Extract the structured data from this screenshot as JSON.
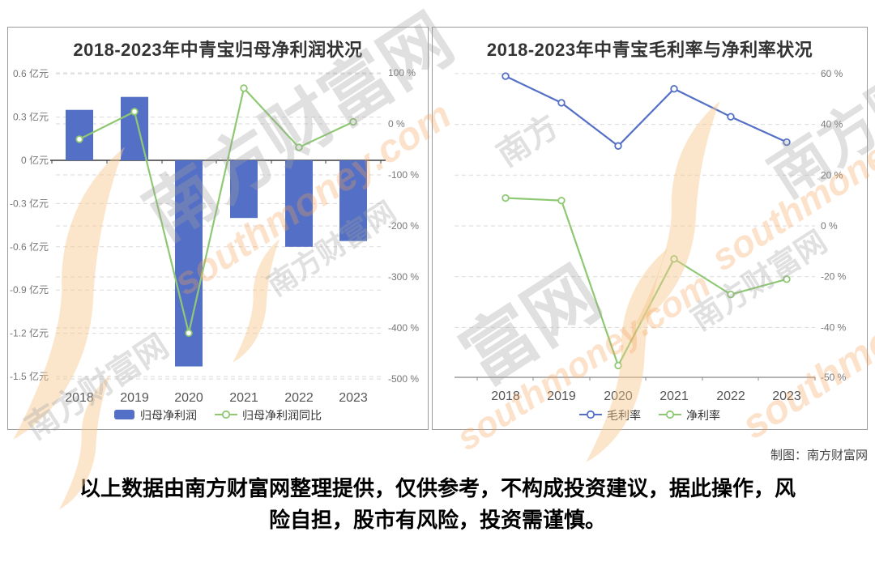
{
  "page": {
    "credit": "制图：南方财富网",
    "disclaimer_lines": [
      "以上数据由南方财富网整理提供，仅供参考，不构成投资建议，据此操作，风",
      "险自担，股市有风险，投资需谨慎。"
    ]
  },
  "watermark": {
    "site_name": "南方财富网",
    "site_url": "southmoney.com",
    "swoosh_color": "#f6c78e",
    "gray_color": "#a0a0a0",
    "orange_color": "#f4a052"
  },
  "chart_data": [
    {
      "type": "bar",
      "title": "2018-2023年中青宝归母净利润状况",
      "categories": [
        "2018",
        "2019",
        "2020",
        "2021",
        "2022",
        "2023"
      ],
      "series": [
        {
          "name": "归母净利润",
          "type": "bar",
          "axis": "left",
          "unit": "亿元",
          "color": "#5470c6",
          "values": [
            0.35,
            0.44,
            -1.43,
            -0.4,
            -0.6,
            -0.56
          ]
        },
        {
          "name": "归母净利润同比",
          "type": "line",
          "axis": "right",
          "unit": "%",
          "color": "#8fc873",
          "values": [
            -30,
            24,
            -410,
            70,
            -46,
            4
          ]
        }
      ],
      "left_axis": {
        "ticks": [
          0.6,
          0.3,
          0,
          -0.3,
          -0.6,
          -0.9,
          -1.2,
          -1.5
        ],
        "label_suffix": " 亿元",
        "range": [
          -1.5,
          0.6
        ]
      },
      "right_axis": {
        "ticks": [
          100,
          0,
          -100,
          -200,
          -300,
          -400,
          -500
        ],
        "label_suffix": " %",
        "range": [
          -500,
          100
        ]
      },
      "grid": true,
      "legend_position": "bottom"
    },
    {
      "type": "line",
      "title": "2018-2023年中青宝毛利率与净利率状况",
      "categories": [
        "2018",
        "2019",
        "2020",
        "2021",
        "2022",
        "2023"
      ],
      "series": [
        {
          "name": "毛利率",
          "type": "line",
          "axis": "right",
          "unit": "%",
          "color": "#5470c6",
          "values": [
            59,
            48.5,
            31.5,
            54,
            43,
            33
          ]
        },
        {
          "name": "净利率",
          "type": "line",
          "axis": "right",
          "unit": "%",
          "color": "#8fc873",
          "values": [
            11,
            10,
            -55,
            -13,
            -27,
            -21
          ]
        }
      ],
      "right_axis": {
        "ticks": [
          60,
          40,
          20,
          0,
          -20,
          -40,
          -50
        ],
        "label_suffix": " %",
        "range": [
          -60,
          60
        ]
      },
      "grid": true,
      "legend_position": "bottom"
    }
  ]
}
